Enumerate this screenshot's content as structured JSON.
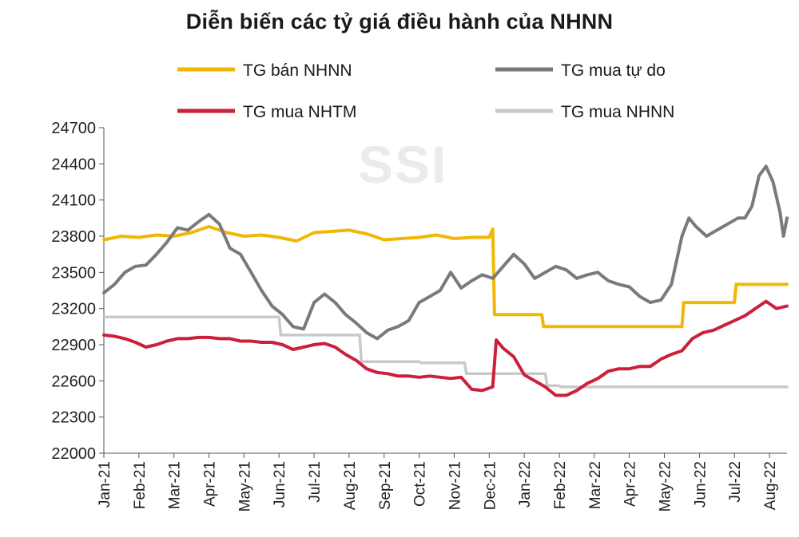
{
  "chart_data": {
    "type": "line",
    "title": "Diễn biến các tỷ giá điều hành của NHNN",
    "watermark": "SSI",
    "ylim": [
      22000,
      24700
    ],
    "yticks": [
      22000,
      22300,
      22600,
      22900,
      23200,
      23500,
      23800,
      24100,
      24400,
      24700
    ],
    "xticks": [
      "Jan-21",
      "Feb-21",
      "Mar-21",
      "Apr-21",
      "May-21",
      "Jun-21",
      "Jul-21",
      "Aug-21",
      "Sep-21",
      "Oct-21",
      "Nov-21",
      "Dec-21",
      "Jan-22",
      "Feb-22",
      "Mar-22",
      "Apr-22",
      "May-22",
      "Jun-22",
      "Jul-22",
      "Aug-22"
    ],
    "x_range_months": [
      0,
      19.5
    ],
    "grid": false,
    "legend_position": "top",
    "series": [
      {
        "name": "TG bán NHNN",
        "color": "#f2b705",
        "x": [
          0,
          0.5,
          1,
          1.5,
          2,
          2.5,
          3,
          3.5,
          4,
          4.5,
          5,
          5.5,
          6,
          6.5,
          7,
          7.5,
          8,
          8.5,
          9,
          9.5,
          10,
          10.5,
          11,
          11.1,
          11.15,
          11.5,
          12,
          12.5,
          12.55,
          13,
          14,
          15,
          16,
          16.5,
          16.55,
          17,
          18,
          18.05,
          19,
          19.5
        ],
        "values": [
          23770,
          23800,
          23790,
          23810,
          23800,
          23830,
          23880,
          23830,
          23800,
          23810,
          23790,
          23760,
          23830,
          23840,
          23850,
          23820,
          23770,
          23780,
          23790,
          23810,
          23780,
          23790,
          23790,
          23860,
          23150,
          23150,
          23150,
          23150,
          23050,
          23050,
          23050,
          23050,
          23050,
          23050,
          23250,
          23250,
          23250,
          23400,
          23400,
          23400
        ]
      },
      {
        "name": "TG mua tự do",
        "color": "#7a7a7a",
        "x": [
          0,
          0.3,
          0.6,
          0.9,
          1.2,
          1.5,
          1.8,
          2.1,
          2.4,
          2.7,
          3.0,
          3.3,
          3.6,
          3.9,
          4.2,
          4.5,
          4.8,
          5.1,
          5.4,
          5.7,
          6.0,
          6.3,
          6.6,
          6.9,
          7.2,
          7.5,
          7.8,
          8.1,
          8.4,
          8.7,
          9.0,
          9.3,
          9.6,
          9.9,
          10.2,
          10.5,
          10.8,
          11.1,
          11.4,
          11.7,
          12.0,
          12.3,
          12.6,
          12.9,
          13.2,
          13.5,
          13.8,
          14.1,
          14.4,
          14.7,
          15.0,
          15.3,
          15.6,
          15.9,
          16.2,
          16.5,
          16.7,
          16.9,
          17.2,
          17.5,
          17.8,
          18.1,
          18.3,
          18.5,
          18.7,
          18.9,
          19.1,
          19.3,
          19.4,
          19.5
        ],
        "values": [
          23330,
          23400,
          23500,
          23550,
          23560,
          23650,
          23750,
          23870,
          23850,
          23920,
          23980,
          23900,
          23700,
          23650,
          23500,
          23350,
          23220,
          23150,
          23050,
          23030,
          23250,
          23320,
          23250,
          23150,
          23080,
          23000,
          22950,
          23020,
          23050,
          23100,
          23250,
          23300,
          23350,
          23500,
          23370,
          23430,
          23480,
          23450,
          23550,
          23650,
          23570,
          23450,
          23500,
          23550,
          23520,
          23450,
          23480,
          23500,
          23430,
          23400,
          23380,
          23300,
          23250,
          23270,
          23400,
          23800,
          23950,
          23880,
          23800,
          23850,
          23900,
          23950,
          23950,
          24050,
          24300,
          24380,
          24250,
          24000,
          23800,
          23950
        ]
      },
      {
        "name": "TG mua NHTM",
        "color": "#cc1f3a",
        "x": [
          0,
          0.3,
          0.6,
          0.9,
          1.2,
          1.5,
          1.8,
          2.1,
          2.4,
          2.7,
          3.0,
          3.3,
          3.6,
          3.9,
          4.2,
          4.5,
          4.8,
          5.1,
          5.4,
          5.7,
          6.0,
          6.3,
          6.6,
          6.9,
          7.2,
          7.5,
          7.8,
          8.1,
          8.4,
          8.7,
          9.0,
          9.3,
          9.6,
          9.9,
          10.2,
          10.5,
          10.8,
          11.1,
          11.2,
          11.4,
          11.7,
          12.0,
          12.3,
          12.6,
          12.9,
          13.2,
          13.5,
          13.8,
          14.1,
          14.4,
          14.7,
          15.0,
          15.3,
          15.6,
          15.9,
          16.2,
          16.5,
          16.8,
          17.1,
          17.4,
          17.7,
          18.0,
          18.3,
          18.6,
          18.9,
          19.2,
          19.5
        ],
        "values": [
          22980,
          22970,
          22950,
          22920,
          22880,
          22900,
          22930,
          22950,
          22950,
          22960,
          22960,
          22950,
          22950,
          22930,
          22930,
          22920,
          22920,
          22900,
          22860,
          22880,
          22900,
          22910,
          22880,
          22820,
          22770,
          22700,
          22670,
          22660,
          22640,
          22640,
          22630,
          22640,
          22630,
          22620,
          22630,
          22530,
          22520,
          22550,
          22940,
          22870,
          22800,
          22650,
          22600,
          22550,
          22480,
          22480,
          22520,
          22580,
          22620,
          22680,
          22700,
          22700,
          22720,
          22720,
          22780,
          22820,
          22850,
          22950,
          23000,
          23020,
          23060,
          23100,
          23140,
          23200,
          23260,
          23200,
          23220
        ]
      },
      {
        "name": "TG mua NHNN",
        "color": "#c9c9c9",
        "x": [
          0,
          5.0,
          5.05,
          7.3,
          7.35,
          9.0,
          9.05,
          10.3,
          10.35,
          12.6,
          12.65,
          13.0,
          13.05,
          19.5
        ],
        "values": [
          23130,
          23130,
          22980,
          22980,
          22760,
          22760,
          22750,
          22750,
          22660,
          22660,
          22560,
          22560,
          22550,
          22550
        ]
      }
    ]
  }
}
